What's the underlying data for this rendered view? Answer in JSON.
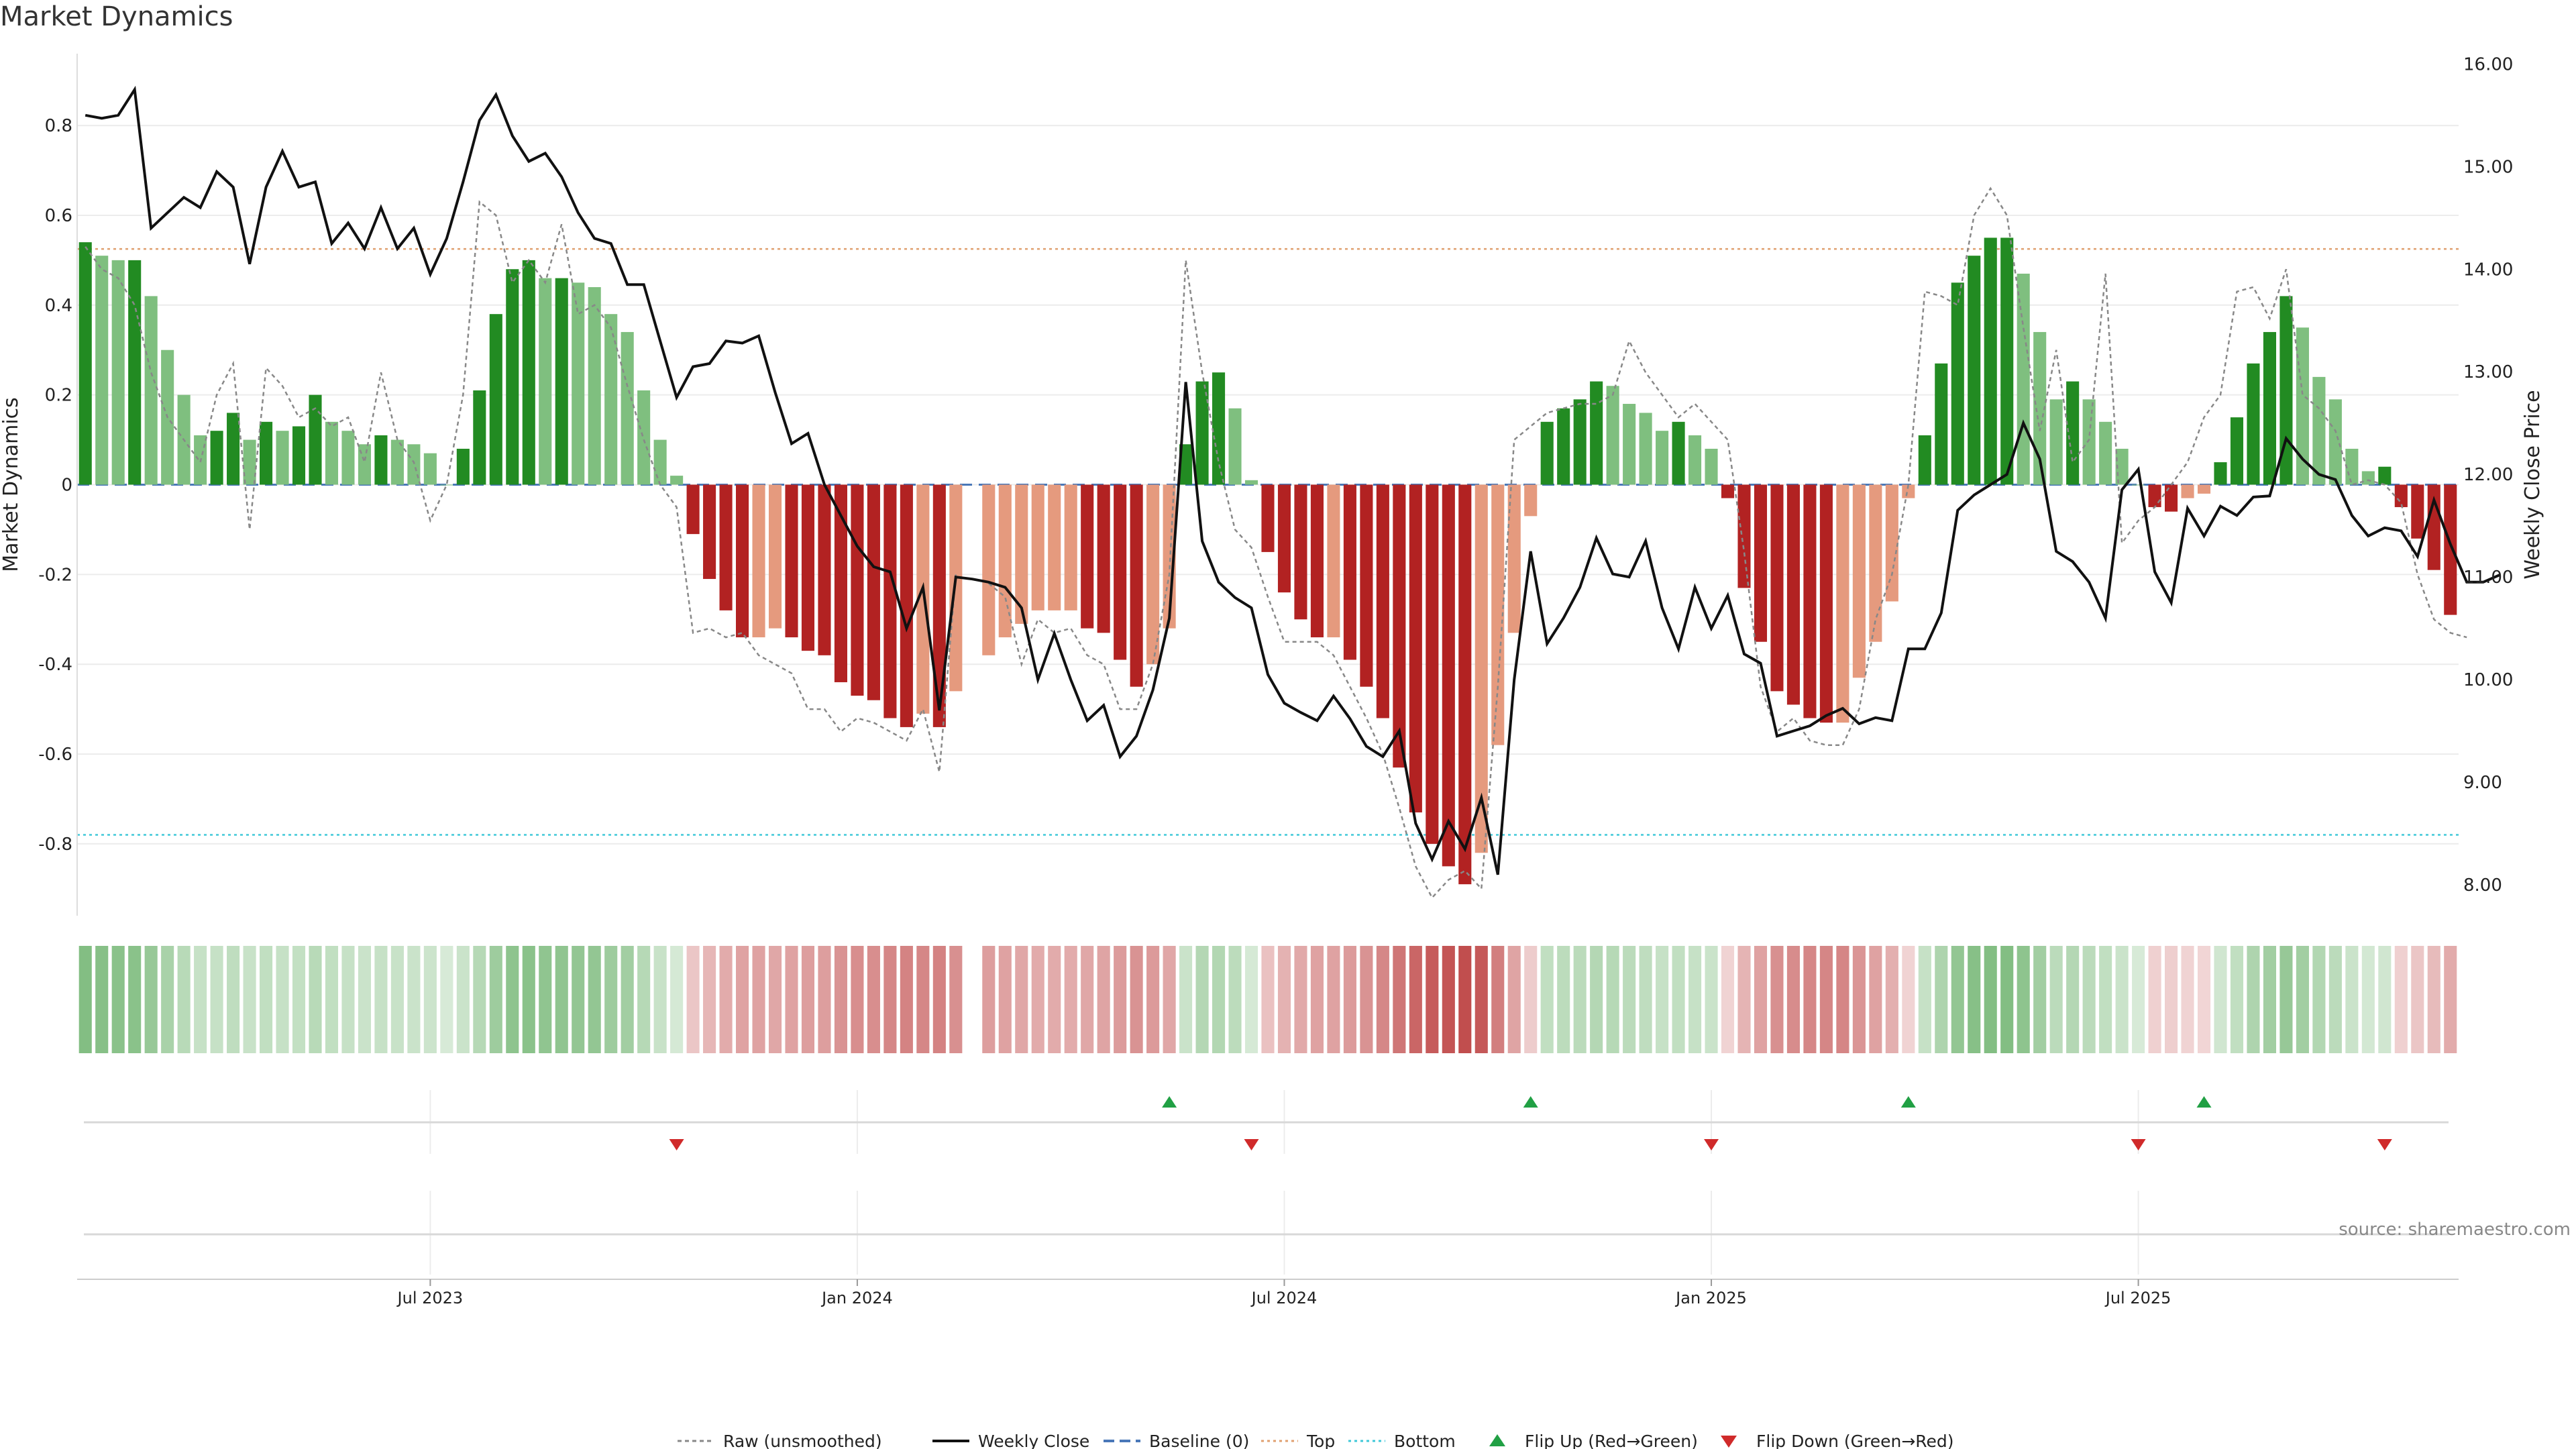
{
  "title": "Market Dynamics",
  "source": "source: sharemaestro.com",
  "colors": {
    "strong_green": "#228b22",
    "light_green": "#7fbf7f",
    "strong_red": "#b22222",
    "light_red": "#e59a7e",
    "raw": "#888888",
    "close": "#111111",
    "baseline": "#4a78b8",
    "top": "#e0a070",
    "bottom": "#40c8d8",
    "flip_up": "#21a044",
    "flip_down": "#d02a2a"
  },
  "chart_data": {
    "type": "bar",
    "title": "Market Dynamics",
    "ylabel": "Market Dynamics",
    "ylabel_right": "Weekly Close Price",
    "ylim": [
      -0.96,
      0.96
    ],
    "ylim_right": [
      7.7,
      16.1
    ],
    "yticks": [
      "0.8",
      "0.6",
      "0.4",
      "0.2",
      "0",
      "-0.2",
      "-0.4",
      "-0.6",
      "-0.8"
    ],
    "yticks_right": [
      "16.00",
      "15.00",
      "14.00",
      "13.00",
      "12.00",
      "11.00",
      "10.00",
      "9.00",
      "8.00"
    ],
    "xticks": [
      "Jul 2023",
      "Jan 2024",
      "Jul 2024",
      "Jan 2025",
      "Jul 2025"
    ],
    "xtick_index": [
      21,
      47,
      73,
      99,
      125
    ],
    "top_level": 0.525,
    "bottom_level": -0.78,
    "baseline": 0,
    "series": [
      {
        "name": "Market Dynamics (smoothed)",
        "values": [
          0.54,
          0.51,
          0.5,
          0.5,
          0.42,
          0.3,
          0.2,
          0.11,
          0.12,
          0.16,
          0.1,
          0.14,
          0.12,
          0.13,
          0.2,
          0.14,
          0.12,
          0.09,
          0.11,
          0.1,
          0.09,
          0.07,
          0,
          0.08,
          0.21,
          0.38,
          0.48,
          0.5,
          0.46,
          0.46,
          0.45,
          0.44,
          0.38,
          0.34,
          0.21,
          0.1,
          0.02,
          -0.11,
          -0.21,
          -0.28,
          -0.34,
          -0.34,
          -0.32,
          -0.34,
          -0.37,
          -0.38,
          -0.44,
          -0.47,
          -0.48,
          -0.52,
          -0.54,
          -0.51,
          -0.54,
          -0.46,
          null,
          -0.38,
          -0.34,
          -0.31,
          -0.28,
          -0.28,
          -0.28,
          -0.32,
          -0.33,
          -0.39,
          -0.45,
          -0.4,
          -0.32,
          0.09,
          0.23,
          0.25,
          0.17,
          0.01,
          -0.15,
          -0.24,
          -0.3,
          -0.34,
          -0.34,
          -0.39,
          -0.45,
          -0.52,
          -0.63,
          -0.73,
          -0.8,
          -0.85,
          -0.89,
          -0.82,
          -0.58,
          -0.33,
          -0.07,
          0.14,
          0.17,
          0.19,
          0.23,
          0.22,
          0.18,
          0.16,
          0.12,
          0.14,
          0.11,
          0.08,
          -0.03,
          -0.23,
          -0.35,
          -0.46,
          -0.49,
          -0.52,
          -0.53,
          -0.53,
          -0.43,
          -0.35,
          -0.26,
          -0.03,
          0.11,
          0.27,
          0.45,
          0.51,
          0.55,
          0.55,
          0.47,
          0.34,
          0.19,
          0.23,
          0.19,
          0.14,
          0.08,
          0,
          -0.05,
          -0.06,
          -0.03,
          -0.02,
          0.05,
          0.15,
          0.27,
          0.34,
          0.42,
          0.35,
          0.24,
          0.19,
          0.08,
          0.03,
          0.04,
          -0.05,
          -0.12,
          -0.19,
          -0.29
        ]
      },
      {
        "name": "Raw (unsmoothed)",
        "values": [
          0.53,
          0.48,
          0.46,
          0.4,
          0.25,
          0.15,
          0.1,
          0.05,
          0.2,
          0.27,
          -0.1,
          0.26,
          0.22,
          0.15,
          0.17,
          0.13,
          0.15,
          0.05,
          0.25,
          0.1,
          0.05,
          -0.08,
          0,
          0.2,
          0.63,
          0.6,
          0.45,
          0.5,
          0.45,
          0.58,
          0.38,
          0.4,
          0.35,
          0.22,
          0.1,
          0,
          -0.05,
          -0.33,
          -0.32,
          -0.34,
          -0.33,
          -0.38,
          -0.4,
          -0.42,
          -0.5,
          -0.5,
          -0.55,
          -0.52,
          -0.53,
          -0.55,
          -0.57,
          -0.5,
          -0.64,
          -0.2,
          null,
          -0.22,
          -0.25,
          -0.4,
          -0.3,
          -0.33,
          -0.32,
          -0.38,
          -0.4,
          -0.5,
          -0.5,
          -0.4,
          -0.2,
          0.5,
          0.25,
          0.05,
          -0.1,
          -0.14,
          -0.25,
          -0.35,
          -0.35,
          -0.35,
          -0.38,
          -0.45,
          -0.52,
          -0.6,
          -0.72,
          -0.85,
          -0.92,
          -0.88,
          -0.86,
          -0.9,
          -0.45,
          0.1,
          0.13,
          0.16,
          0.17,
          0.18,
          0.18,
          0.2,
          0.32,
          0.25,
          0.2,
          0.15,
          0.18,
          0.14,
          0.1,
          -0.15,
          -0.45,
          -0.55,
          -0.52,
          -0.57,
          -0.58,
          -0.58,
          -0.5,
          -0.3,
          -0.2,
          0,
          0.43,
          0.42,
          0.4,
          0.6,
          0.66,
          0.6,
          0.35,
          0.12,
          0.3,
          0.05,
          0.1,
          0.47,
          -0.13,
          -0.08,
          -0.05,
          0,
          0.05,
          0.15,
          0.2,
          0.43,
          0.44,
          0.37,
          0.48,
          0.2,
          0.17,
          0.12,
          0,
          0.01,
          0,
          -0.04,
          -0.2,
          -0.3,
          -0.33,
          -0.34
        ]
      },
      {
        "name": "Weekly Close",
        "axis": "right",
        "values": [
          15.5,
          15.47,
          15.5,
          15.75,
          14.4,
          14.55,
          14.7,
          14.6,
          14.95,
          14.8,
          14.05,
          14.8,
          15.15,
          14.8,
          14.85,
          14.25,
          14.45,
          14.2,
          14.6,
          14.2,
          14.4,
          13.95,
          14.3,
          14.85,
          15.45,
          15.7,
          15.3,
          15.05,
          15.13,
          14.9,
          14.55,
          14.3,
          14.25,
          13.85,
          13.85,
          13.3,
          12.75,
          13.05,
          13.08,
          13.3,
          13.28,
          13.35,
          12.8,
          12.3,
          12.4,
          11.9,
          11.6,
          11.3,
          11.1,
          11.05,
          10.5,
          10.9,
          9.7,
          11.0,
          10.98,
          10.95,
          10.9,
          10.7,
          10.0,
          10.45,
          10.0,
          9.6,
          9.75,
          9.25,
          9.45,
          9.9,
          10.6,
          12.9,
          11.35,
          10.95,
          10.8,
          10.7,
          10.05,
          9.77,
          9.68,
          9.6,
          9.84,
          9.62,
          9.35,
          9.25,
          9.5,
          8.6,
          8.25,
          8.62,
          8.35,
          8.85,
          8.1,
          10.0,
          11.25,
          10.35,
          10.6,
          10.9,
          11.38,
          11.03,
          11.0,
          11.35,
          10.7,
          10.3,
          10.9,
          10.5,
          10.82,
          10.25,
          10.16,
          9.45,
          9.5,
          9.55,
          9.65,
          9.72,
          9.57,
          9.63,
          9.6,
          10.3,
          10.3,
          10.65,
          11.65,
          11.8,
          11.9,
          12.0,
          12.5,
          12.15,
          11.25,
          11.15,
          10.95,
          10.6,
          11.85,
          12.05,
          11.05,
          10.75,
          11.67,
          11.4,
          11.69,
          11.6,
          11.78,
          11.79,
          12.35,
          12.15,
          12.0,
          11.95,
          11.6,
          11.4,
          11.48,
          11.45,
          11.2,
          11.75,
          11.32,
          10.95,
          10.95,
          11.02
        ]
      }
    ],
    "flips_up_index": [
      66,
      88,
      111,
      129
    ],
    "flips_down_index": [
      36,
      71,
      99,
      125,
      140
    ],
    "legend_position": "bottom-center",
    "legend": [
      "Raw (unsmoothed)",
      "Weekly Close",
      "Baseline (0)",
      "Top",
      "Bottom",
      "Flip Up (Red→Green)",
      "Flip Down (Green→Red)"
    ]
  }
}
